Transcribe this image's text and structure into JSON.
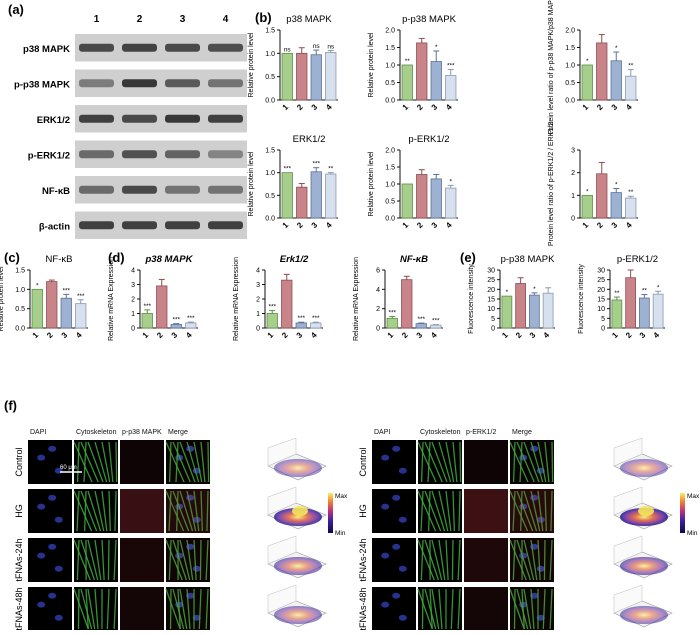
{
  "colors": {
    "bars": [
      "#a6cf8c",
      "#c98489",
      "#9db2d3",
      "#d6e0ee"
    ],
    "bar_edges": [
      "#5f8c45",
      "#8d4c52",
      "#5d7298",
      "#8b9ab0"
    ],
    "cyto_green": "#3fae3a",
    "dapi_blue": "#2f3fb0",
    "stain_red": "#b8333a",
    "heat_low": "#1b1f88",
    "heat_high": "#f4e55a"
  },
  "panel_labels": {
    "a": "(a)",
    "b": "(b)",
    "c": "(c)",
    "d": "(d)",
    "e": "(e)",
    "f": "(f)"
  },
  "western_blot": {
    "lane_labels": [
      "1",
      "2",
      "3",
      "4"
    ],
    "rows": [
      {
        "label": "p38 MAPK",
        "intensity": [
          0.75,
          0.78,
          0.74,
          0.72
        ]
      },
      {
        "label": "p-p38 MAPK",
        "intensity": [
          0.45,
          0.85,
          0.65,
          0.5
        ]
      },
      {
        "label": "ERK1/2",
        "intensity": [
          0.8,
          0.75,
          0.85,
          0.8
        ]
      },
      {
        "label": "p-ERK1/2",
        "intensity": [
          0.55,
          0.7,
          0.6,
          0.4
        ]
      },
      {
        "label": "NF-κB",
        "intensity": [
          0.55,
          0.75,
          0.5,
          0.5
        ]
      },
      {
        "label": "β-actin",
        "intensity": [
          0.8,
          0.8,
          0.8,
          0.8
        ]
      }
    ]
  },
  "chart_data": [
    {
      "id": "b1",
      "type": "bar",
      "title": "p38 MAPK",
      "title_italic": false,
      "ylabel": "Relative protein level",
      "categories": [
        "1",
        "2",
        "3",
        "4"
      ],
      "values": [
        1.0,
        1.0,
        0.97,
        1.02
      ],
      "errors": [
        0,
        0.12,
        0.1,
        0.04
      ],
      "ylim": [
        0,
        1.5
      ],
      "yticks": [
        0,
        0.5,
        1.0,
        1.5
      ],
      "ytick_labels": [
        "0.0",
        "0.5",
        "1.0",
        "1.5"
      ],
      "sig": [
        "ns",
        "",
        "ns",
        "ns"
      ]
    },
    {
      "id": "b2",
      "type": "bar",
      "title": "p-p38 MAPK",
      "title_italic": false,
      "ylabel": "Relative protein level",
      "categories": [
        "1",
        "2",
        "3",
        "4"
      ],
      "values": [
        1.0,
        1.63,
        1.1,
        0.7
      ],
      "errors": [
        0,
        0.13,
        0.3,
        0.17
      ],
      "ylim": [
        0,
        2.0
      ],
      "yticks": [
        0,
        0.5,
        1.0,
        1.5,
        2.0
      ],
      "ytick_labels": [
        "0.0",
        "0.5",
        "1.0",
        "1.5",
        "2.0"
      ],
      "sig": [
        "**",
        "",
        "*",
        "***"
      ]
    },
    {
      "id": "b3",
      "type": "bar",
      "title": "",
      "title_italic": false,
      "ylabel": "Protein level ratio of p-p38 MAPK/p38 MAPK",
      "categories": [
        "1",
        "2",
        "3",
        "4"
      ],
      "values": [
        1.0,
        1.63,
        1.12,
        0.68
      ],
      "errors": [
        0,
        0.24,
        0.25,
        0.19
      ],
      "ylim": [
        0,
        2.0
      ],
      "yticks": [
        0,
        0.5,
        1.0,
        1.5,
        2.0
      ],
      "ytick_labels": [
        "0.0",
        "0.5",
        "1.0",
        "1.5",
        "2.0"
      ],
      "sig": [
        "*",
        "",
        "*",
        "**"
      ]
    },
    {
      "id": "b4",
      "type": "bar",
      "title": "ERK1/2",
      "title_italic": false,
      "ylabel": "Relative protein level",
      "categories": [
        "1",
        "2",
        "3",
        "4"
      ],
      "values": [
        1.0,
        0.68,
        1.02,
        0.97
      ],
      "errors": [
        0,
        0.08,
        0.09,
        0.03
      ],
      "ylim": [
        0,
        1.5
      ],
      "yticks": [
        0,
        0.5,
        1.0,
        1.5
      ],
      "ytick_labels": [
        "0.0",
        "0.5",
        "1.0",
        "1.5"
      ],
      "sig": [
        "***",
        "",
        "***",
        "**"
      ]
    },
    {
      "id": "b5",
      "type": "bar",
      "title": "p-ERK1/2",
      "title_italic": false,
      "ylabel": "Relative protein level",
      "categories": [
        "1",
        "2",
        "3",
        "4"
      ],
      "values": [
        1.0,
        1.28,
        1.15,
        0.88
      ],
      "errors": [
        0,
        0.14,
        0.13,
        0.08
      ],
      "ylim": [
        0,
        2.0
      ],
      "yticks": [
        0,
        0.5,
        1.0,
        1.5,
        2.0
      ],
      "ytick_labels": [
        "0.0",
        "0.5",
        "1.0",
        "1.5",
        "2.0"
      ],
      "sig": [
        "",
        "",
        "",
        "*"
      ]
    },
    {
      "id": "b6",
      "type": "bar",
      "title": "",
      "title_italic": false,
      "ylabel": "Protein level ratio of p-ERK1/2 / ERK1/2",
      "categories": [
        "1",
        "2",
        "3",
        "4"
      ],
      "values": [
        1.0,
        1.95,
        1.12,
        0.88
      ],
      "errors": [
        0,
        0.5,
        0.18,
        0.08
      ],
      "ylim": [
        0,
        3
      ],
      "yticks": [
        0,
        1,
        2,
        3
      ],
      "ytick_labels": [
        "0",
        "1",
        "2",
        "3"
      ],
      "sig": [
        "*",
        "",
        "*",
        "**"
      ]
    },
    {
      "id": "c",
      "type": "bar",
      "title": "NF-κB",
      "title_italic": false,
      "ylabel": "Relative protein level",
      "categories": [
        "1",
        "2",
        "3",
        "4"
      ],
      "values": [
        1.0,
        1.2,
        0.77,
        0.63
      ],
      "errors": [
        0,
        0.04,
        0.1,
        0.1
      ],
      "ylim": [
        0,
        1.5
      ],
      "yticks": [
        0,
        0.5,
        1.0,
        1.5
      ],
      "ytick_labels": [
        "0.0",
        "0.5",
        "1.0",
        "1.5"
      ],
      "sig": [
        "*",
        "",
        "***",
        "***"
      ]
    },
    {
      "id": "d1",
      "type": "bar",
      "title": "p38 MAPK",
      "title_italic": true,
      "ylabel": "Relative mRNA Expression",
      "categories": [
        "1",
        "2",
        "3",
        "4"
      ],
      "values": [
        1.0,
        2.9,
        0.25,
        0.35
      ],
      "errors": [
        0.25,
        0.45,
        0.05,
        0.06
      ],
      "ylim": [
        0,
        4
      ],
      "yticks": [
        0,
        1,
        2,
        3,
        4
      ],
      "ytick_labels": [
        "0",
        "1",
        "2",
        "3",
        "4"
      ],
      "sig": [
        "***",
        "",
        "***",
        "***"
      ]
    },
    {
      "id": "d2",
      "type": "bar",
      "title": "Erk1/2",
      "title_italic": true,
      "ylabel": "Relative mRNA Expression",
      "categories": [
        "1",
        "2",
        "3",
        "4"
      ],
      "values": [
        1.0,
        3.3,
        0.35,
        0.35
      ],
      "errors": [
        0.2,
        0.4,
        0.05,
        0.05
      ],
      "ylim": [
        0,
        4
      ],
      "yticks": [
        0,
        1,
        2,
        3,
        4
      ],
      "ytick_labels": [
        "0",
        "1",
        "2",
        "3",
        "4"
      ],
      "sig": [
        "***",
        "",
        "***",
        "***"
      ]
    },
    {
      "id": "d3",
      "type": "bar",
      "title": "NF-κB",
      "title_italic": true,
      "ylabel": "Relative mRNA Expression",
      "categories": [
        "1",
        "2",
        "3",
        "4"
      ],
      "values": [
        1.0,
        5.0,
        0.45,
        0.3
      ],
      "errors": [
        0.2,
        0.35,
        0.06,
        0.05
      ],
      "ylim": [
        0,
        6
      ],
      "yticks": [
        0,
        2,
        4,
        6
      ],
      "ytick_labels": [
        "0",
        "2",
        "4",
        "6"
      ],
      "sig": [
        "***",
        "",
        "***",
        "***"
      ]
    },
    {
      "id": "e1",
      "type": "bar",
      "title": "p-p38 MAPK",
      "title_italic": false,
      "ylabel": "Fluorescence intensity",
      "categories": [
        "1",
        "2",
        "3",
        "4"
      ],
      "values": [
        16.5,
        23.0,
        17.0,
        18.0
      ],
      "errors": [
        0,
        3.0,
        1.2,
        2.8
      ],
      "ylim": [
        0,
        30
      ],
      "yticks": [
        0,
        5,
        10,
        15,
        20,
        25,
        30
      ],
      "ytick_labels": [
        "0",
        "5",
        "10",
        "15",
        "20",
        "25",
        "30"
      ],
      "sig": [
        "*",
        "",
        "*",
        ""
      ]
    },
    {
      "id": "e2",
      "type": "bar",
      "title": "p-ERK1/2",
      "title_italic": false,
      "ylabel": "Fluorescence intensity",
      "categories": [
        "1",
        "2",
        "3",
        "4"
      ],
      "values": [
        14.5,
        26.0,
        15.5,
        17.5
      ],
      "errors": [
        1.5,
        4.0,
        1.8,
        1.5
      ],
      "ylim": [
        0,
        30
      ],
      "yticks": [
        0,
        5,
        10,
        15,
        20,
        25,
        30
      ],
      "ytick_labels": [
        "0",
        "5",
        "10",
        "15",
        "20",
        "25",
        "30"
      ],
      "sig": [
        "**",
        "",
        "**",
        "*"
      ]
    }
  ],
  "microscopy": {
    "row_labels": [
      "Control",
      "HG",
      "tFNAs-24h",
      "tFNAs-48h"
    ],
    "left": {
      "columns": [
        "DAPI",
        "Cytoskeleton",
        "p-p38 MAPK",
        "Merge"
      ],
      "red_level": [
        0.15,
        0.55,
        0.25,
        0.2
      ]
    },
    "right": {
      "columns": [
        "DAPI",
        "Cytoskeleton",
        "p-ERK1/2",
        "Merge"
      ],
      "red_level": [
        0.15,
        0.6,
        0.3,
        0.2
      ]
    },
    "scale_bar": "60 μm",
    "colorbar_max": "Max",
    "colorbar_min": "Min"
  }
}
